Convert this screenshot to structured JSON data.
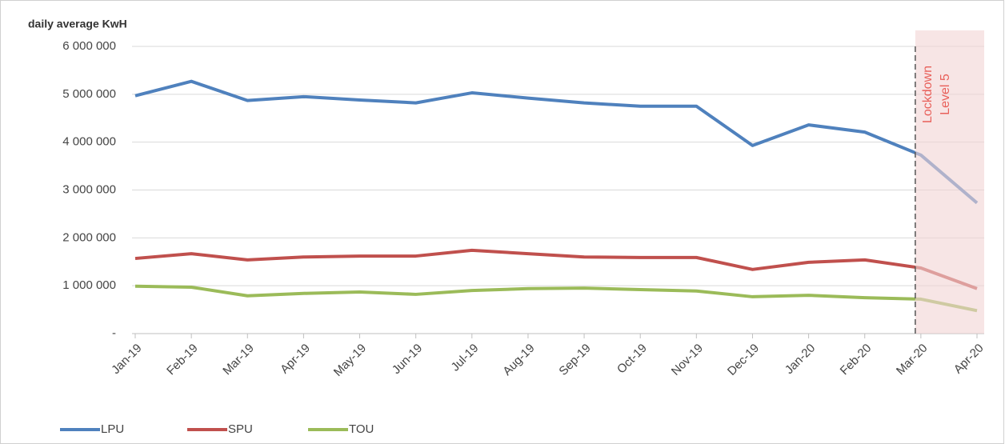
{
  "chart_data": {
    "type": "line",
    "y_axis_label": "daily average KwH",
    "categories": [
      "Jan-19",
      "Feb-19",
      "Mar-19",
      "Apr-19",
      "May-19",
      "Jun-19",
      "Jul-19",
      "Aug-19",
      "Sep-19",
      "Oct-19",
      "Nov-19",
      "Dec-19",
      "Jan-20",
      "Feb-20",
      "Mar-20",
      "Apr-20"
    ],
    "series": [
      {
        "name": "LPU",
        "color": "#4f81bd",
        "values": [
          4970000,
          5270000,
          4870000,
          4950000,
          4880000,
          4820000,
          5030000,
          4920000,
          4820000,
          4750000,
          4750000,
          3930000,
          4360000,
          4210000,
          3730000,
          2730000
        ]
      },
      {
        "name": "SPU",
        "color": "#c0504d",
        "values": [
          1570000,
          1670000,
          1540000,
          1600000,
          1620000,
          1620000,
          1740000,
          1670000,
          1600000,
          1590000,
          1590000,
          1340000,
          1490000,
          1540000,
          1370000,
          940000
        ]
      },
      {
        "name": "TOU",
        "color": "#9bbb59",
        "values": [
          990000,
          970000,
          790000,
          840000,
          870000,
          820000,
          900000,
          940000,
          950000,
          920000,
          890000,
          770000,
          800000,
          750000,
          720000,
          480000
        ]
      }
    ],
    "ylim": [
      0,
      6000000
    ],
    "yticks": [
      {
        "value": 0,
        "label": "-"
      },
      {
        "value": 1000000,
        "label": "1 000 000"
      },
      {
        "value": 2000000,
        "label": "2 000 000"
      },
      {
        "value": 3000000,
        "label": "3 000 000"
      },
      {
        "value": 4000000,
        "label": "4 000 000"
      },
      {
        "value": 5000000,
        "label": "5 000 000"
      },
      {
        "value": 6000000,
        "label": "6 000 000"
      }
    ],
    "grid": true,
    "legend": "bottom-left",
    "annotation": {
      "lines": [
        "Lockdown",
        "Level 5"
      ],
      "from": "Mar-20",
      "color": "#f2d3d3",
      "text_color": "#e8605a"
    }
  }
}
